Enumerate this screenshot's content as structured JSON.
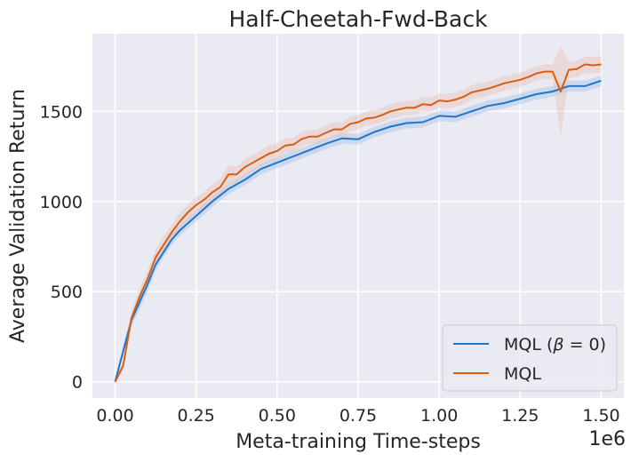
{
  "chart_data": {
    "type": "line",
    "title": "Half-Cheetah-Fwd-Back",
    "xlabel": "Meta-training Time-steps",
    "ylabel": "Average Validation Return",
    "x_offset_label": "1e6",
    "xlim": [
      -0.07,
      1.57
    ],
    "ylim": [
      -90,
      1930
    ],
    "xticks": [
      0.0,
      0.25,
      0.5,
      0.75,
      1.0,
      1.25,
      1.5
    ],
    "xtick_labels": [
      "0.00",
      "0.25",
      "0.50",
      "0.75",
      "1.00",
      "1.25",
      "1.50"
    ],
    "yticks": [
      0,
      500,
      1000,
      1500
    ],
    "ytick_labels": [
      "0",
      "500",
      "1000",
      "1500"
    ],
    "grid": true,
    "legend_position": "lower-right",
    "series": [
      {
        "name": "MQL (β = 0)",
        "legend_prefix": "MQL (",
        "legend_symbol": "β",
        "legend_suffix": " = 0)",
        "color": "#1f77c8",
        "band_color": "#a9c4e6",
        "x": [
          0.0,
          0.025,
          0.05,
          0.075,
          0.1,
          0.125,
          0.15,
          0.175,
          0.2,
          0.25,
          0.3,
          0.35,
          0.4,
          0.45,
          0.5,
          0.55,
          0.6,
          0.65,
          0.7,
          0.75,
          0.8,
          0.85,
          0.9,
          0.95,
          1.0,
          1.05,
          1.1,
          1.15,
          1.2,
          1.25,
          1.3,
          1.35,
          1.4,
          1.45,
          1.5
        ],
        "y": [
          0,
          170,
          340,
          440,
          540,
          650,
          720,
          790,
          840,
          920,
          1000,
          1070,
          1120,
          1180,
          1215,
          1250,
          1285,
          1320,
          1350,
          1345,
          1385,
          1415,
          1435,
          1440,
          1475,
          1470,
          1500,
          1530,
          1545,
          1570,
          1595,
          1610,
          1640,
          1640,
          1670
        ],
        "band": [
          10,
          25,
          35,
          40,
          40,
          35,
          30,
          30,
          30,
          30,
          30,
          30,
          30,
          30,
          30,
          30,
          30,
          30,
          30,
          30,
          30,
          30,
          30,
          30,
          30,
          30,
          30,
          30,
          30,
          30,
          30,
          30,
          30,
          30,
          30
        ]
      },
      {
        "name": "MQL",
        "legend_prefix": "MQL",
        "legend_symbol": "",
        "legend_suffix": "",
        "color": "#d65f14",
        "band_color": "#e8c3b5",
        "x": [
          0.0,
          0.025,
          0.05,
          0.075,
          0.1,
          0.125,
          0.15,
          0.175,
          0.2,
          0.225,
          0.25,
          0.275,
          0.3,
          0.325,
          0.35,
          0.375,
          0.4,
          0.425,
          0.45,
          0.475,
          0.5,
          0.525,
          0.55,
          0.575,
          0.6,
          0.625,
          0.65,
          0.675,
          0.7,
          0.725,
          0.75,
          0.775,
          0.8,
          0.825,
          0.85,
          0.875,
          0.9,
          0.925,
          0.95,
          0.975,
          1.0,
          1.025,
          1.05,
          1.075,
          1.1,
          1.125,
          1.15,
          1.175,
          1.2,
          1.225,
          1.25,
          1.275,
          1.3,
          1.325,
          1.35,
          1.375,
          1.4,
          1.425,
          1.45,
          1.475,
          1.5
        ],
        "y": [
          0,
          90,
          350,
          470,
          570,
          690,
          760,
          830,
          890,
          940,
          980,
          1010,
          1050,
          1080,
          1150,
          1150,
          1190,
          1215,
          1240,
          1265,
          1280,
          1310,
          1315,
          1345,
          1360,
          1360,
          1380,
          1400,
          1400,
          1430,
          1440,
          1460,
          1465,
          1480,
          1500,
          1510,
          1520,
          1520,
          1540,
          1535,
          1560,
          1555,
          1565,
          1580,
          1605,
          1615,
          1625,
          1640,
          1655,
          1665,
          1675,
          1690,
          1710,
          1720,
          1720,
          1610,
          1730,
          1735,
          1760,
          1755,
          1760
        ],
        "band": [
          10,
          30,
          40,
          45,
          45,
          45,
          45,
          45,
          45,
          45,
          45,
          45,
          45,
          45,
          50,
          45,
          45,
          45,
          45,
          45,
          45,
          40,
          40,
          40,
          40,
          40,
          40,
          40,
          40,
          40,
          40,
          40,
          40,
          40,
          40,
          40,
          40,
          40,
          40,
          40,
          40,
          40,
          40,
          40,
          40,
          40,
          40,
          40,
          40,
          40,
          40,
          40,
          40,
          40,
          40,
          250,
          45,
          45,
          45,
          45,
          45
        ]
      }
    ]
  }
}
